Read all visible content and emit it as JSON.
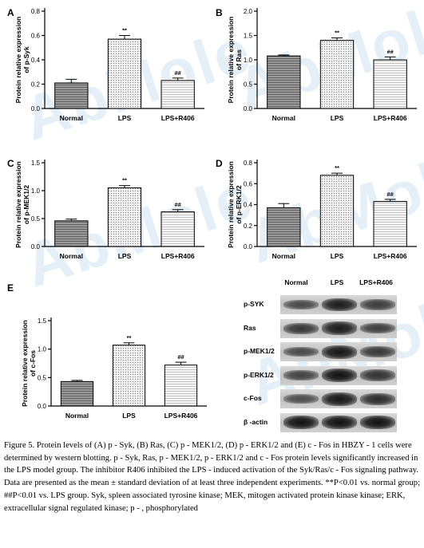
{
  "watermark": "AbMole",
  "colors": {
    "axis": "#000000",
    "bar_normal_fill": "#8c8c8c",
    "bar_lps_fill": "#e6e6e6",
    "bar_r406_fill": "#f4f4f4",
    "watermark": "#cfe3f3"
  },
  "chart_data": [
    {
      "panel_label": "A",
      "type": "bar",
      "ylabel": "Protein relative expression of p-Syk",
      "categories": [
        "Normal",
        "LPS",
        "LPS+R406"
      ],
      "values": [
        0.21,
        0.57,
        0.23
      ],
      "errors": [
        0.03,
        0.03,
        0.02
      ],
      "significance": [
        "",
        "**",
        "##"
      ],
      "ylim": [
        0.0,
        0.8
      ],
      "yticks": [
        "0.0",
        "0.2",
        "0.4",
        "0.6",
        "0.8"
      ]
    },
    {
      "panel_label": "B",
      "type": "bar",
      "ylabel": "Protein relative expression of Ras",
      "categories": [
        "Normal",
        "LPS",
        "LPS+R406"
      ],
      "values": [
        1.08,
        1.4,
        1.0
      ],
      "errors": [
        0.02,
        0.05,
        0.06
      ],
      "significance": [
        "",
        "**",
        "##"
      ],
      "ylim": [
        0.0,
        2.0
      ],
      "yticks": [
        "0.0",
        "0.5",
        "1.0",
        "1.5",
        "2.0"
      ]
    },
    {
      "panel_label": "C",
      "type": "bar",
      "ylabel": "Protein relative expression of p-MEK1/2",
      "categories": [
        "Normal",
        "LPS",
        "LPS+R406"
      ],
      "values": [
        0.46,
        1.05,
        0.62
      ],
      "errors": [
        0.03,
        0.04,
        0.04
      ],
      "significance": [
        "",
        "**",
        "##"
      ],
      "ylim": [
        0.0,
        1.5
      ],
      "yticks": [
        "0.0",
        "0.5",
        "1.0",
        "1.5"
      ]
    },
    {
      "panel_label": "D",
      "type": "bar",
      "ylabel": "Protein relative expression of p-ERK1/2",
      "categories": [
        "Normal",
        "LPS",
        "LPS+R406"
      ],
      "values": [
        0.37,
        0.68,
        0.43
      ],
      "errors": [
        0.04,
        0.02,
        0.02
      ],
      "significance": [
        "",
        "**",
        "##"
      ],
      "ylim": [
        0.0,
        0.8
      ],
      "yticks": [
        "0.0",
        "0.2",
        "0.4",
        "0.6",
        "0.8"
      ]
    },
    {
      "panel_label": "E",
      "type": "bar",
      "ylabel": "Protein relative expression of c-Fos",
      "categories": [
        "Normal",
        "LPS",
        "LPS+R406"
      ],
      "values": [
        0.43,
        1.07,
        0.72
      ],
      "errors": [
        0.02,
        0.04,
        0.05
      ],
      "significance": [
        "",
        "**",
        "##"
      ],
      "ylim": [
        0.0,
        1.5
      ],
      "yticks": [
        "0.0",
        "0.5",
        "1.0",
        "1.5"
      ]
    }
  ],
  "blot": {
    "columns": [
      "Normal",
      "LPS",
      "LPS+R406"
    ],
    "rows": [
      {
        "label": "p-SYK",
        "intensity": [
          0.45,
          0.85,
          0.55
        ]
      },
      {
        "label": "Ras",
        "intensity": [
          0.6,
          0.85,
          0.55
        ]
      },
      {
        "label": "p-MEK1/2",
        "intensity": [
          0.45,
          0.9,
          0.6
        ]
      },
      {
        "label": "p-ERK1/2",
        "intensity": [
          0.5,
          0.95,
          0.65
        ]
      },
      {
        "label": "c-Fos",
        "intensity": [
          0.4,
          0.9,
          0.7
        ]
      },
      {
        "label": "β -actin",
        "intensity": [
          0.95,
          0.95,
          0.95
        ]
      }
    ]
  },
  "caption": "Figure 5. Protein levels of (A) p - Syk, (B) Ras, (C) p - MEK1/2, (D) p - ERK1/2 and (E) c - Fos in HBZY - 1 cells were determined by western blotting. p - Syk, Ras, p - MEK1/2, p - ERK1/2 and c - Fos protein levels significantly increased in the LPS model group. The inhibitor R406 inhibited the LPS - induced activation of the Syk/Ras/c - Fos signaling pathway. Data are presented as the mean ± standard deviation of at least three independent experiments. **P<0.01 vs. normal group; ##P<0.01 vs. LPS group. Syk, spleen associated tyrosine kinase; MEK, mitogen activated protein kinase kinase; ERK, extracellular signal regulated kinase; p - , phosphorylated"
}
